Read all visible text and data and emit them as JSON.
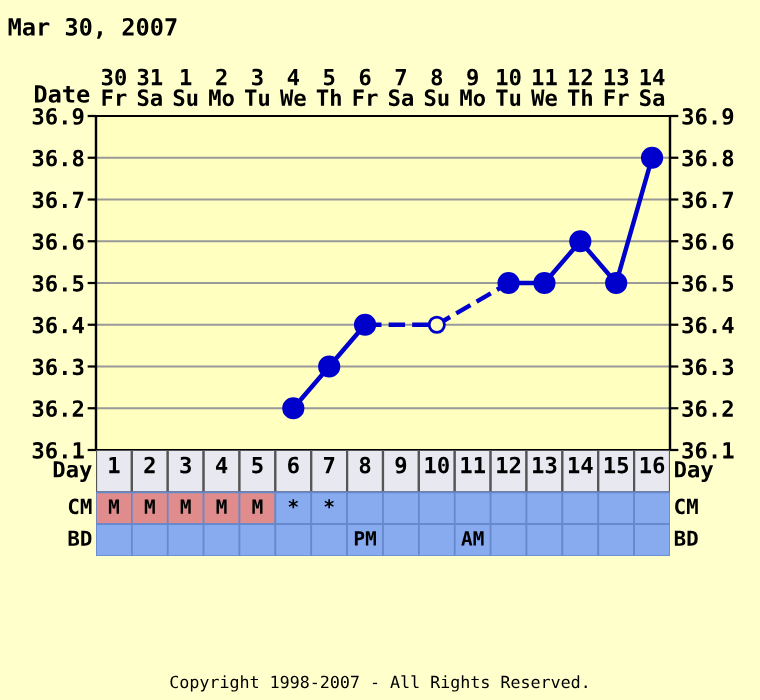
{
  "chart_data": [
    {
      "type": "line",
      "title": "Mar 30, 2007",
      "xlabel": "Date",
      "categories": [
        "30\nFr",
        "31\nSa",
        "1\nSu",
        "2\nMo",
        "3\nTu",
        "4\nWe",
        "5\nTh",
        "6\nFr",
        "7\nSa",
        "8\nSu",
        "9\nMo",
        "10\nTu",
        "11\nWe",
        "12\nTh",
        "13\nFr",
        "14\nSa"
      ],
      "series": [
        {
          "type": "line",
          "color": "#0000cc",
          "line_style": "dashed",
          "marker": "circle",
          "values": [
            null,
            null,
            null,
            null,
            null,
            null,
            null,
            36.4,
            null,
            36.4,
            null,
            36.5,
            null,
            null,
            null,
            null
          ]
        },
        {
          "type": "line",
          "color": "#0000cc",
          "line_style": "solid",
          "marker": "circle",
          "values": [
            null,
            null,
            null,
            null,
            null,
            36.2,
            36.3,
            36.4,
            null,
            null,
            null,
            null,
            null,
            null,
            null,
            null
          ]
        },
        {
          "type": "line",
          "color": "#0000cc",
          "line_style": "solid",
          "marker": "circle",
          "values": [
            null,
            null,
            null,
            null,
            null,
            null,
            null,
            null,
            null,
            null,
            null,
            36.5,
            36.5,
            36.6,
            36.5,
            36.8
          ]
        }
      ],
      "ylim": [
        36.1,
        36.9
      ],
      "yticks": [
        36.1,
        36.2,
        36.3,
        36.4,
        36.5,
        36.6,
        36.7,
        36.8,
        36.9
      ],
      "y2lim": [
        36.1,
        36.9
      ],
      "y2ticks": [
        36.1,
        36.2,
        36.3,
        36.4,
        36.5,
        36.6,
        36.7,
        36.8,
        36.9
      ],
      "grid": true,
      "legend": false
    },
    {
      "type": "heatmap",
      "xlabel": "Day",
      "cells": [
        [
          null,
          null,
          null,
          null,
          null,
          null,
          null,
          null,
          null,
          null,
          null,
          null,
          null,
          null,
          null,
          null
        ],
        [
          null,
          null,
          null,
          null,
          null,
          null,
          null,
          null,
          null,
          null,
          null,
          null,
          null,
          null,
          null,
          null
        ]
      ],
      "categories": [
        "1",
        "2",
        "3",
        "4",
        "5",
        "6",
        "7",
        "8",
        "9",
        "10",
        "11",
        "12",
        "13",
        "14",
        "15",
        "16"
      ],
      "y_categories": [
        "CM",
        "BD"
      ],
      "y2_categories": [
        "CM",
        "BD"
      ],
      "cell_labels": [
        [
          "M",
          "M",
          "M",
          "M",
          "M",
          "*",
          "*",
          null,
          null,
          null,
          null,
          null,
          null,
          null,
          null,
          null
        ],
        [
          null,
          null,
          null,
          null,
          null,
          null,
          null,
          "PM",
          null,
          null,
          "AM",
          null,
          null,
          null,
          null,
          null
        ]
      ],
      "colors": [
        [
          "#e08c8c",
          "#e08c8c",
          "#e08c8c",
          "#e08c8c",
          "#e08c8c",
          "#88aaee",
          "#88aaee",
          "#88aaee",
          "#88aaee",
          "#88aaee",
          "#88aaee",
          "#88aaee",
          "#88aaee",
          "#88aaee",
          "#88aaee",
          "#88aaee"
        ],
        [
          "#88aaee",
          "#88aaee",
          "#88aaee",
          "#88aaee",
          "#88aaee",
          "#88aaee",
          "#88aaee",
          "#88aaee",
          "#88aaee",
          "#88aaee",
          "#88aaee",
          "#88aaee",
          "#88aaee",
          "#88aaee",
          "#88aaee",
          "#88aaee"
        ]
      ],
      "annotations": [
        "Copyright 1998-2007 - All Rights Reserved."
      ]
    }
  ]
}
